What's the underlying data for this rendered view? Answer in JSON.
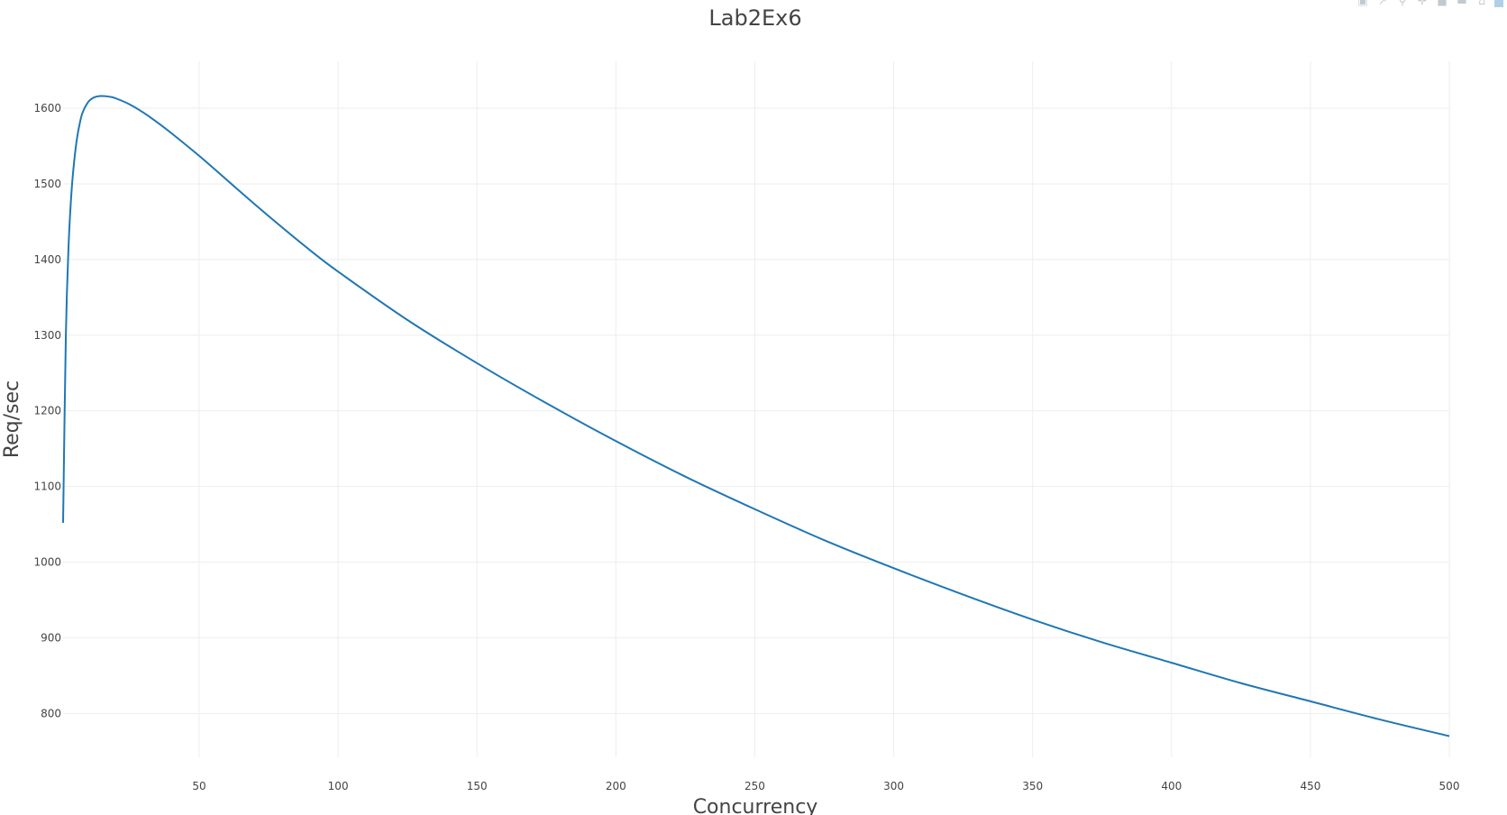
{
  "chart_data": {
    "type": "line",
    "title": "Lab2Ex6",
    "xlabel": "Concurrency",
    "ylabel": "Req/sec",
    "xlim": [
      1,
      500
    ],
    "ylim": [
      742,
      1662
    ],
    "xticks": [
      50,
      100,
      150,
      200,
      250,
      300,
      350,
      400,
      450,
      500
    ],
    "yticks": [
      800,
      900,
      1000,
      1100,
      1200,
      1300,
      1400,
      1500,
      1600
    ],
    "grid": true,
    "line_color": "#1f77b4",
    "series": [
      {
        "x": [
          1,
          2,
          3,
          4,
          5,
          6,
          7,
          8,
          10,
          12,
          14,
          16,
          18,
          20,
          25,
          30,
          35,
          40,
          50,
          60,
          70,
          80,
          90,
          100,
          125,
          150,
          175,
          200,
          225,
          250,
          275,
          300,
          325,
          350,
          375,
          400,
          425,
          450,
          475,
          500
        ],
        "y": [
          1052,
          1300,
          1420,
          1488,
          1530,
          1560,
          1580,
          1594,
          1608,
          1614,
          1616,
          1616,
          1615,
          1613,
          1605,
          1594,
          1581,
          1567,
          1537,
          1505,
          1473,
          1442,
          1412,
          1384,
          1320,
          1263,
          1210,
          1160,
          1113,
          1070,
          1029,
          992,
          957,
          924,
          894,
          867,
          840,
          816,
          792,
          770
        ]
      }
    ]
  },
  "modebar": {
    "icons": [
      "camera-icon",
      "edit-icon",
      "zoom-icon",
      "pan-icon",
      "zoom-in-icon",
      "zoom-out-icon",
      "home-icon",
      "plotly-logo"
    ]
  }
}
